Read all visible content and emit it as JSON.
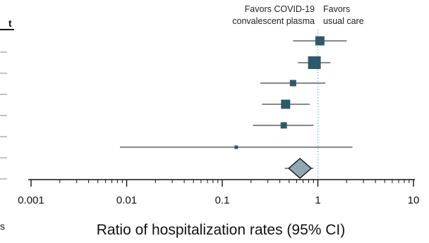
{
  "chart_data": {
    "type": "forest",
    "xscale": "log",
    "xlim": [
      0.001,
      10
    ],
    "xlabel": "Ratio of hospitalization rates (95% CI)",
    "ticks": [
      {
        "value": 0.001,
        "label": "0.001"
      },
      {
        "value": 0.01,
        "label": "0.01"
      },
      {
        "value": 0.1,
        "label": "0.1"
      },
      {
        "value": 1,
        "label": "1"
      },
      {
        "value": 10,
        "label": "10"
      }
    ],
    "reference_value": 1,
    "favors_left": [
      "Favors COVID-19",
      "convalescent plasma"
    ],
    "favors_right": [
      "Favors",
      "usual care"
    ],
    "header_fragment": "t",
    "bottom_left_fragment": "s",
    "studies": [
      {
        "estimate": 1.05,
        "ci": [
          0.55,
          2.0
        ],
        "weight": "medium"
      },
      {
        "estimate": 0.92,
        "ci": [
          0.62,
          1.35
        ],
        "weight": "large"
      },
      {
        "estimate": 0.55,
        "ci": [
          0.25,
          1.2
        ],
        "weight": "small"
      },
      {
        "estimate": 0.46,
        "ci": [
          0.26,
          0.82
        ],
        "weight": "medium"
      },
      {
        "estimate": 0.44,
        "ci": [
          0.21,
          0.9
        ],
        "weight": "small"
      },
      {
        "estimate": 0.14,
        "ci": [
          0.0085,
          2.3
        ],
        "weight": "tiny"
      }
    ],
    "pooled": {
      "estimate": 0.65,
      "ci": [
        0.45,
        0.9
      ]
    },
    "colors": {
      "marker": "#2c5a6b",
      "pooled_fill": "#8fa9b4",
      "reference_line": "#7fd4e0",
      "axis": "#111111"
    }
  }
}
